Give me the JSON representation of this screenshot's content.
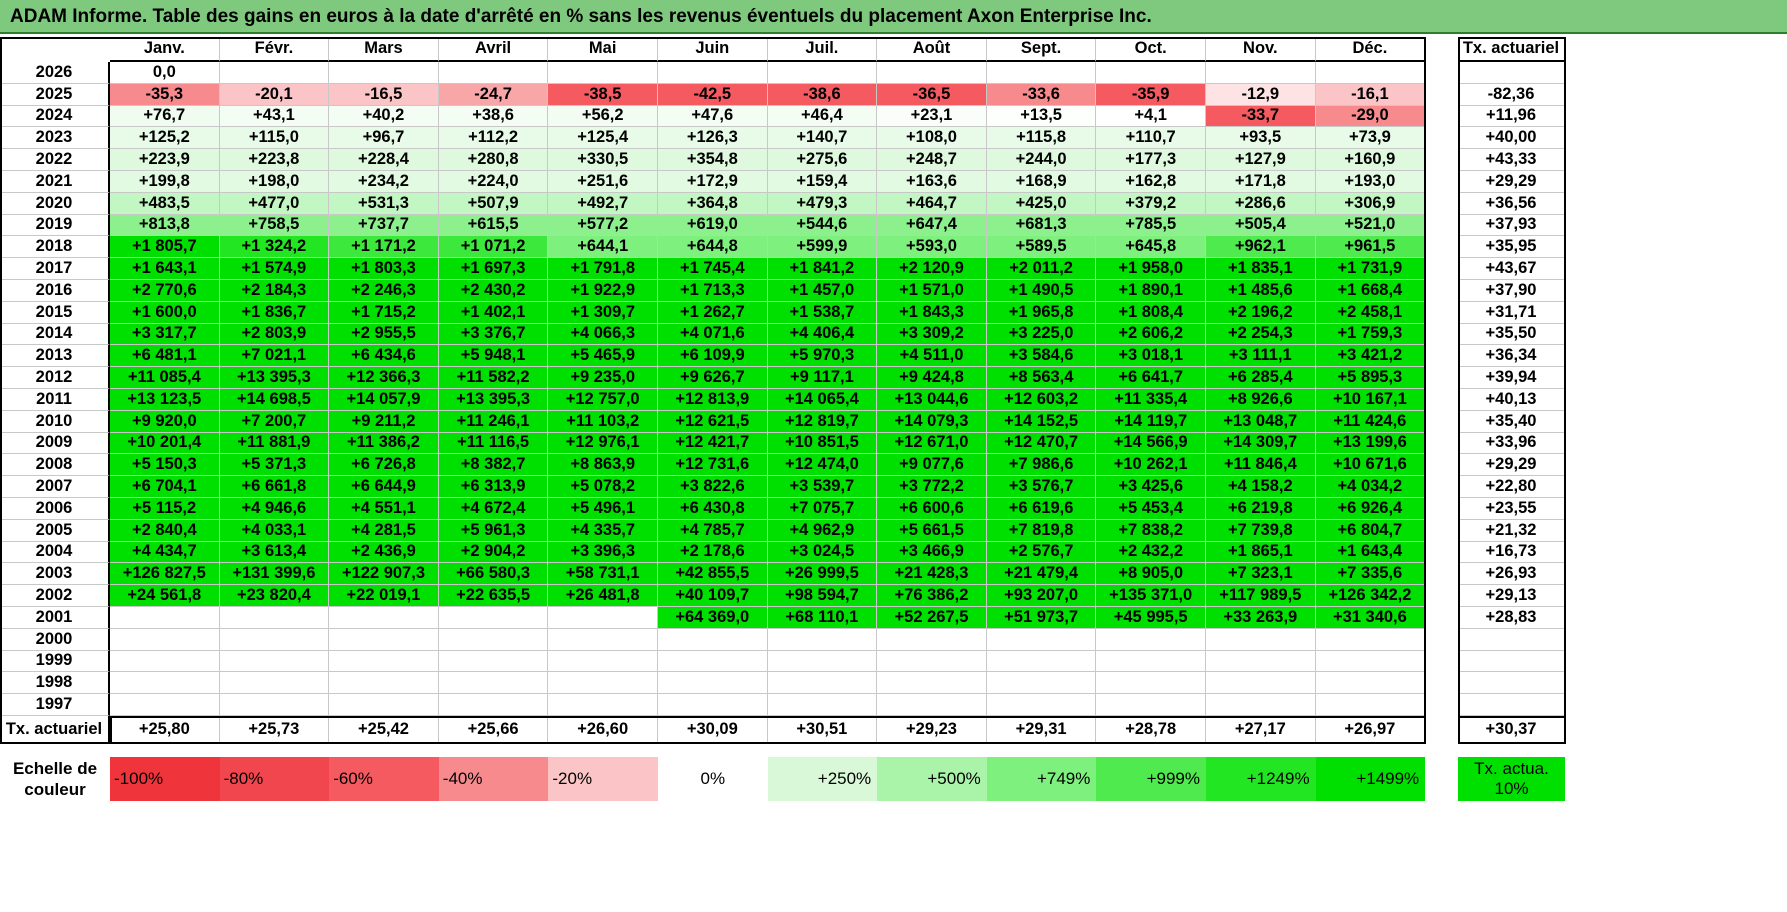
{
  "title": "ADAM Informe. Table des gains en euros à la date d'arrêté en % sans les revenus éventuels du placement Axon Enterprise Inc.",
  "months": [
    "Janv.",
    "Févr.",
    "Mars",
    "Avril",
    "Mai",
    "Juin",
    "Juil.",
    "Août",
    "Sept.",
    "Oct.",
    "Nov.",
    "Déc."
  ],
  "rate_header": "Tx. actuariel",
  "rows": [
    {
      "year": "2026",
      "values": [
        "0,0",
        "",
        "",
        "",
        "",
        "",
        "",
        "",
        "",
        "",
        "",
        ""
      ],
      "rate": ""
    },
    {
      "year": "2025",
      "values": [
        "-35,3",
        "-20,1",
        "-16,5",
        "-24,7",
        "-38,5",
        "-42,5",
        "-38,6",
        "-36,5",
        "-33,6",
        "-35,9",
        "-12,9",
        "-16,1"
      ],
      "rate": "-82,36"
    },
    {
      "year": "2024",
      "values": [
        "+76,7",
        "+43,1",
        "+40,2",
        "+38,6",
        "+56,2",
        "+47,6",
        "+46,4",
        "+23,1",
        "+13,5",
        "+4,1",
        "-33,7",
        "-29,0"
      ],
      "rate": "+11,96"
    },
    {
      "year": "2023",
      "values": [
        "+125,2",
        "+115,0",
        "+96,7",
        "+112,2",
        "+125,4",
        "+126,3",
        "+140,7",
        "+108,0",
        "+115,8",
        "+110,7",
        "+93,5",
        "+73,9"
      ],
      "rate": "+40,00"
    },
    {
      "year": "2022",
      "values": [
        "+223,9",
        "+223,8",
        "+228,4",
        "+280,8",
        "+330,5",
        "+354,8",
        "+275,6",
        "+248,7",
        "+244,0",
        "+177,3",
        "+127,9",
        "+160,9"
      ],
      "rate": "+43,33"
    },
    {
      "year": "2021",
      "values": [
        "+199,8",
        "+198,0",
        "+234,2",
        "+224,0",
        "+251,6",
        "+172,9",
        "+159,4",
        "+163,6",
        "+168,9",
        "+162,8",
        "+171,8",
        "+193,0"
      ],
      "rate": "+29,29"
    },
    {
      "year": "2020",
      "values": [
        "+483,5",
        "+477,0",
        "+531,3",
        "+507,9",
        "+492,7",
        "+364,8",
        "+479,3",
        "+464,7",
        "+425,0",
        "+379,2",
        "+286,6",
        "+306,9"
      ],
      "rate": "+36,56"
    },
    {
      "year": "2019",
      "values": [
        "+813,8",
        "+758,5",
        "+737,7",
        "+615,5",
        "+577,2",
        "+619,0",
        "+544,6",
        "+647,4",
        "+681,3",
        "+785,5",
        "+505,4",
        "+521,0"
      ],
      "rate": "+37,93"
    },
    {
      "year": "2018",
      "values": [
        "+1 805,7",
        "+1 324,2",
        "+1 171,2",
        "+1 071,2",
        "+644,1",
        "+644,8",
        "+599,9",
        "+593,0",
        "+589,5",
        "+645,8",
        "+962,1",
        "+961,5"
      ],
      "rate": "+35,95"
    },
    {
      "year": "2017",
      "values": [
        "+1 643,1",
        "+1 574,9",
        "+1 803,3",
        "+1 697,3",
        "+1 791,8",
        "+1 745,4",
        "+1 841,2",
        "+2 120,9",
        "+2 011,2",
        "+1 958,0",
        "+1 835,1",
        "+1 731,9"
      ],
      "rate": "+43,67"
    },
    {
      "year": "2016",
      "values": [
        "+2 770,6",
        "+2 184,3",
        "+2 246,3",
        "+2 430,2",
        "+1 922,9",
        "+1 713,3",
        "+1 457,0",
        "+1 571,0",
        "+1 490,5",
        "+1 890,1",
        "+1 485,6",
        "+1 668,4"
      ],
      "rate": "+37,90"
    },
    {
      "year": "2015",
      "values": [
        "+1 600,0",
        "+1 836,7",
        "+1 715,2",
        "+1 402,1",
        "+1 309,7",
        "+1 262,7",
        "+1 538,7",
        "+1 843,3",
        "+1 965,8",
        "+1 808,4",
        "+2 196,2",
        "+2 458,1"
      ],
      "rate": "+31,71"
    },
    {
      "year": "2014",
      "values": [
        "+3 317,7",
        "+2 803,9",
        "+2 955,5",
        "+3 376,7",
        "+4 066,3",
        "+4 071,6",
        "+4 406,4",
        "+3 309,2",
        "+3 225,0",
        "+2 606,2",
        "+2 254,3",
        "+1 759,3"
      ],
      "rate": "+35,50"
    },
    {
      "year": "2013",
      "values": [
        "+6 481,1",
        "+7 021,1",
        "+6 434,6",
        "+5 948,1",
        "+5 465,9",
        "+6 109,9",
        "+5 970,3",
        "+4 511,0",
        "+3 584,6",
        "+3 018,1",
        "+3 111,1",
        "+3 421,2"
      ],
      "rate": "+36,34"
    },
    {
      "year": "2012",
      "values": [
        "+11 085,4",
        "+13 395,3",
        "+12 366,3",
        "+11 582,2",
        "+9 235,0",
        "+9 626,7",
        "+9 117,1",
        "+9 424,8",
        "+8 563,4",
        "+6 641,7",
        "+6 285,4",
        "+5 895,3"
      ],
      "rate": "+39,94"
    },
    {
      "year": "2011",
      "values": [
        "+13 123,5",
        "+14 698,5",
        "+14 057,9",
        "+13 395,3",
        "+12 757,0",
        "+12 813,9",
        "+14 065,4",
        "+13 044,6",
        "+12 603,2",
        "+11 335,4",
        "+8 926,6",
        "+10 167,1"
      ],
      "rate": "+40,13"
    },
    {
      "year": "2010",
      "values": [
        "+9 920,0",
        "+7 200,7",
        "+9 211,2",
        "+11 246,1",
        "+11 103,2",
        "+12 621,5",
        "+12 819,7",
        "+14 079,3",
        "+14 152,5",
        "+14 119,7",
        "+13 048,7",
        "+11 424,6"
      ],
      "rate": "+35,40"
    },
    {
      "year": "2009",
      "values": [
        "+10 201,4",
        "+11 881,9",
        "+11 386,2",
        "+11 116,5",
        "+12 976,1",
        "+12 421,7",
        "+10 851,5",
        "+12 671,0",
        "+12 470,7",
        "+14 566,9",
        "+14 309,7",
        "+13 199,6"
      ],
      "rate": "+33,96"
    },
    {
      "year": "2008",
      "values": [
        "+5 150,3",
        "+5 371,3",
        "+6 726,8",
        "+8 382,7",
        "+8 863,9",
        "+12 731,6",
        "+12 474,0",
        "+9 077,6",
        "+7 986,6",
        "+10 262,1",
        "+11 846,4",
        "+10 671,6"
      ],
      "rate": "+29,29"
    },
    {
      "year": "2007",
      "values": [
        "+6 704,1",
        "+6 661,8",
        "+6 644,9",
        "+6 313,9",
        "+5 078,2",
        "+3 822,6",
        "+3 539,7",
        "+3 772,2",
        "+3 576,7",
        "+3 425,6",
        "+4 158,2",
        "+4 034,2"
      ],
      "rate": "+22,80"
    },
    {
      "year": "2006",
      "values": [
        "+5 115,2",
        "+4 946,6",
        "+4 551,1",
        "+4 672,4",
        "+5 496,1",
        "+6 430,8",
        "+7 075,7",
        "+6 600,6",
        "+6 619,6",
        "+5 453,4",
        "+6 219,8",
        "+6 926,4"
      ],
      "rate": "+23,55"
    },
    {
      "year": "2005",
      "values": [
        "+2 840,4",
        "+4 033,1",
        "+4 281,5",
        "+5 961,3",
        "+4 335,7",
        "+4 785,7",
        "+4 962,9",
        "+5 661,5",
        "+7 819,8",
        "+7 838,2",
        "+7 739,8",
        "+6 804,7"
      ],
      "rate": "+21,32"
    },
    {
      "year": "2004",
      "values": [
        "+4 434,7",
        "+3 613,4",
        "+2 436,9",
        "+2 904,2",
        "+3 396,3",
        "+2 178,6",
        "+3 024,5",
        "+3 466,9",
        "+2 576,7",
        "+2 432,2",
        "+1 865,1",
        "+1 643,4"
      ],
      "rate": "+16,73"
    },
    {
      "year": "2003",
      "values": [
        "+126 827,5",
        "+131 399,6",
        "+122 907,3",
        "+66 580,3",
        "+58 731,1",
        "+42 855,5",
        "+26 999,5",
        "+21 428,3",
        "+21 479,4",
        "+8 905,0",
        "+7 323,1",
        "+7 335,6"
      ],
      "rate": "+26,93"
    },
    {
      "year": "2002",
      "values": [
        "+24 561,8",
        "+23 820,4",
        "+22 019,1",
        "+22 635,5",
        "+26 481,8",
        "+40 109,7",
        "+98 594,7",
        "+76 386,2",
        "+93 207,0",
        "+135 371,0",
        "+117 989,5",
        "+126 342,2"
      ],
      "rate": "+29,13"
    },
    {
      "year": "2001",
      "values": [
        "",
        "",
        "",
        "",
        "",
        "+64 369,0",
        "+68 110,1",
        "+52 267,5",
        "+51 973,7",
        "+45 995,5",
        "+33 263,9",
        "+31 340,6"
      ],
      "rate": "+28,83"
    },
    {
      "year": "2000",
      "values": [
        "",
        "",
        "",
        "",
        "",
        "",
        "",
        "",
        "",
        "",
        "",
        ""
      ],
      "rate": ""
    },
    {
      "year": "1999",
      "values": [
        "",
        "",
        "",
        "",
        "",
        "",
        "",
        "",
        "",
        "",
        "",
        ""
      ],
      "rate": ""
    },
    {
      "year": "1998",
      "values": [
        "",
        "",
        "",
        "",
        "",
        "",
        "",
        "",
        "",
        "",
        "",
        ""
      ],
      "rate": ""
    },
    {
      "year": "1997",
      "values": [
        "",
        "",
        "",
        "",
        "",
        "",
        "",
        "",
        "",
        "",
        "",
        ""
      ],
      "rate": ""
    }
  ],
  "footer": {
    "label": "Tx. actuariel",
    "values": [
      "+25,80",
      "+25,73",
      "+25,42",
      "+25,66",
      "+26,60",
      "+30,09",
      "+30,51",
      "+29,23",
      "+29,31",
      "+28,78",
      "+27,17",
      "+26,97"
    ],
    "rate": "+30,37"
  },
  "legend": {
    "label": "Echelle de couleur",
    "items": [
      {
        "text": "-100%",
        "color": "#f0343c",
        "align": "l"
      },
      {
        "text": "-80%",
        "color": "#f2464e",
        "align": "l"
      },
      {
        "text": "-60%",
        "color": "#f45a60",
        "align": "l"
      },
      {
        "text": "-40%",
        "color": "#f68a8d",
        "align": "l"
      },
      {
        "text": "-20%",
        "color": "#fbc4c6",
        "align": "l"
      },
      {
        "text": "0%",
        "color": "#ffffff",
        "align": "m"
      },
      {
        "text": "+250%",
        "color": "#d8f8d8",
        "align": "r"
      },
      {
        "text": "+500%",
        "color": "#aaf4aa",
        "align": "r"
      },
      {
        "text": "+749%",
        "color": "#7ef07e",
        "align": "r"
      },
      {
        "text": "+999%",
        "color": "#4eea4e",
        "align": "r"
      },
      {
        "text": "+1249%",
        "color": "#22e622",
        "align": "r"
      },
      {
        "text": "+1499%",
        "color": "#00e000",
        "align": "r"
      }
    ],
    "rate_label": "Tx. actua. 10%",
    "rate_color": "#00e000"
  },
  "row_colors": {
    "2026": [
      "#ffffff"
    ],
    "2025": [
      "#f68a8d",
      "#fbc4c6",
      "#fbc4c6",
      "#f8a6a8",
      "#f45a60",
      "#f45a60",
      "#f45a60",
      "#f45a60",
      "#f68a8d",
      "#f45a60",
      "#fde3e4",
      "#fbc4c6"
    ],
    "2024": [
      "#f0fcf0",
      "#f4fdf4",
      "#f4fdf4",
      "#f4fdf4",
      "#f2fcf2",
      "#f3fdf3",
      "#f3fdf3",
      "#fafefa",
      "#fcfffc",
      "#ffffff",
      "#f45a60",
      "#f68a8d"
    ],
    "2023": [
      "#e8fbe8"
    ],
    "2022": [
      "#dff9df"
    ],
    "2021": [
      "#e2fae2"
    ],
    "2020": [
      "#c2f6c2"
    ],
    "2019": [
      "#8cf08c"
    ],
    "2018": [
      "#00e000",
      "#22e622",
      "#3ce83c",
      "#3ce83c",
      "#7ef07e",
      "#7ef07e",
      "#7ef07e",
      "#7ef07e",
      "#7ef07e",
      "#7ef07e",
      "#4eea4e",
      "#4eea4e"
    ],
    "default": [
      "#00e000"
    ]
  }
}
